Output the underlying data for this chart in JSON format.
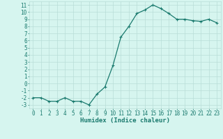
{
  "x": [
    0,
    1,
    2,
    3,
    4,
    5,
    6,
    7,
    8,
    9,
    10,
    11,
    12,
    13,
    14,
    15,
    16,
    17,
    18,
    19,
    20,
    21,
    22,
    23
  ],
  "y": [
    -2,
    -2,
    -2.5,
    -2.5,
    -2,
    -2.5,
    -2.5,
    -3,
    -1.5,
    -0.5,
    2.5,
    6.5,
    8,
    9.8,
    10.3,
    11,
    10.5,
    9.8,
    9,
    9,
    8.8,
    8.7,
    9,
    8.5
  ],
  "line_color": "#1a7a6e",
  "marker": "+",
  "bg_color": "#d6f5ef",
  "grid_color": "#b8ddd7",
  "xlabel": "Humidex (Indice chaleur)",
  "xlim": [
    -0.5,
    23.5
  ],
  "ylim": [
    -3.5,
    11.5
  ],
  "yticks": [
    -3,
    -2,
    -1,
    0,
    1,
    2,
    3,
    4,
    5,
    6,
    7,
    8,
    9,
    10,
    11
  ],
  "xticks": [
    0,
    1,
    2,
    3,
    4,
    5,
    6,
    7,
    8,
    9,
    10,
    11,
    12,
    13,
    14,
    15,
    16,
    17,
    18,
    19,
    20,
    21,
    22,
    23
  ],
  "title_color": "#1a7a6e",
  "tick_fontsize": 5.5,
  "xlabel_fontsize": 6.5,
  "linewidth": 0.9,
  "markersize": 3,
  "markeredgewidth": 0.8
}
